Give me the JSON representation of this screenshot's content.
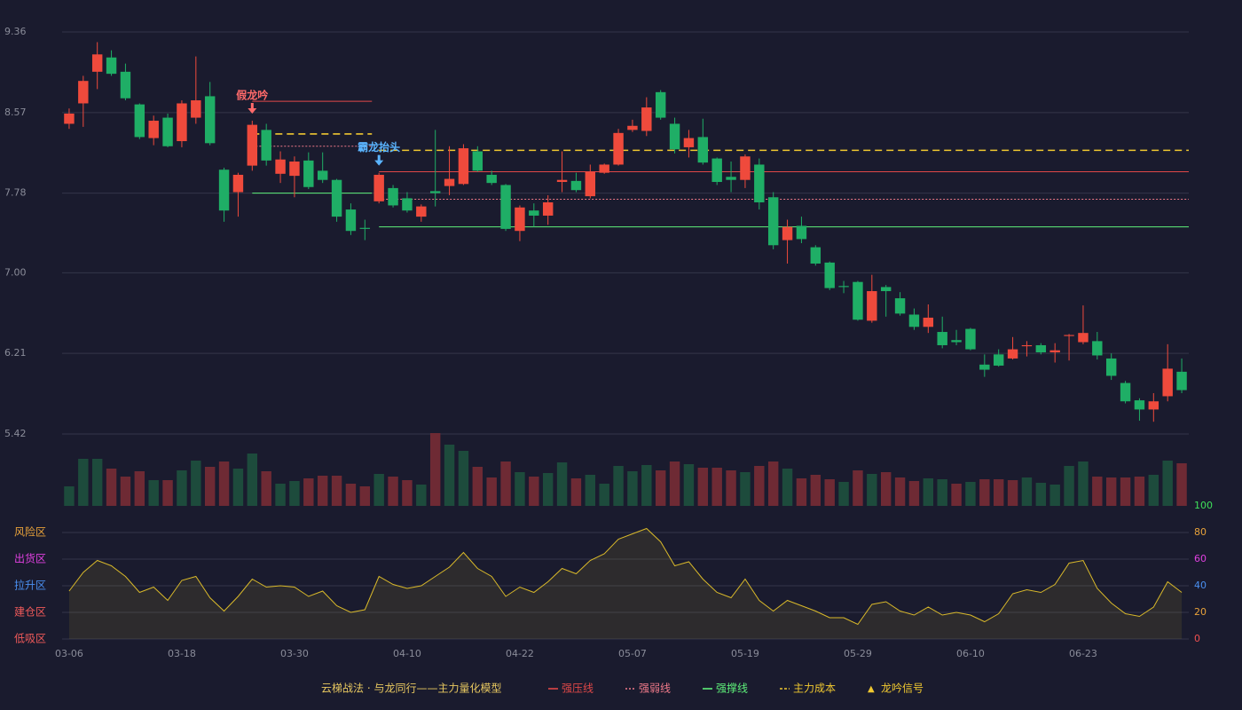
{
  "chart_data": {
    "type": "candlestick",
    "categories": [
      "03-06",
      null,
      null,
      null,
      null,
      null,
      null,
      null,
      "03-18",
      null,
      null,
      null,
      null,
      null,
      null,
      null,
      "03-30",
      null,
      null,
      null,
      null,
      null,
      null,
      null,
      "04-10",
      null,
      null,
      null,
      null,
      null,
      null,
      null,
      "04-22",
      null,
      null,
      null,
      null,
      null,
      null,
      null,
      "05-07",
      null,
      null,
      null,
      null,
      null,
      null,
      null,
      "05-19",
      null,
      null,
      null,
      null,
      null,
      null,
      null,
      "05-29",
      null,
      null,
      null,
      null,
      null,
      null,
      null,
      "06-10",
      null,
      null,
      null,
      null,
      null,
      null,
      null,
      "06-23",
      null,
      null,
      null,
      null,
      null,
      null,
      null
    ],
    "open": [
      8.46,
      8.66,
      8.97,
      9.11,
      8.97,
      8.65,
      8.32,
      8.52,
      8.29,
      8.52,
      8.73,
      8.01,
      7.79,
      8.05,
      8.4,
      7.97,
      7.95,
      8.1,
      8.0,
      7.91,
      7.62,
      7.44,
      7.7,
      7.83,
      7.73,
      7.55,
      7.8,
      7.85,
      7.87,
      8.19,
      7.96,
      7.86,
      7.41,
      7.61,
      7.56,
      7.89,
      7.9,
      7.75,
      7.98,
      8.06,
      8.4,
      8.39,
      8.77,
      8.46,
      8.23,
      8.33,
      8.12,
      7.94,
      7.91,
      8.06,
      7.74,
      7.32,
      7.46,
      7.25,
      7.1,
      6.87,
      6.91,
      6.53,
      6.86,
      6.75,
      6.59,
      6.47,
      6.42,
      6.34,
      6.45,
      6.1,
      6.2,
      6.16,
      6.28,
      6.29,
      6.22,
      6.38,
      6.32,
      6.33,
      6.16,
      5.92,
      5.75,
      5.66,
      5.79,
      6.03
    ],
    "high": [
      8.61,
      8.93,
      9.26,
      9.18,
      9.05,
      8.66,
      8.54,
      8.56,
      8.69,
      9.12,
      8.87,
      8.03,
      7.98,
      8.49,
      8.46,
      8.19,
      8.14,
      8.18,
      8.18,
      7.92,
      7.68,
      7.52,
      7.98,
      7.86,
      7.79,
      7.67,
      8.4,
      8.24,
      8.26,
      8.24,
      8.0,
      7.87,
      7.66,
      7.68,
      7.76,
      8.19,
      7.98,
      8.06,
      8.07,
      8.41,
      8.5,
      8.72,
      8.79,
      8.52,
      8.4,
      8.51,
      8.13,
      8.09,
      8.16,
      8.12,
      7.79,
      7.52,
      7.55,
      7.27,
      7.11,
      6.92,
      6.92,
      6.98,
      6.88,
      6.81,
      6.65,
      6.69,
      6.57,
      6.44,
      6.46,
      6.2,
      6.25,
      6.37,
      6.33,
      6.31,
      6.31,
      6.4,
      6.68,
      6.42,
      6.21,
      5.94,
      5.77,
      5.82,
      6.3,
      6.16
    ],
    "low": [
      8.41,
      8.43,
      8.8,
      8.93,
      8.69,
      8.31,
      8.25,
      8.23,
      8.23,
      8.46,
      8.25,
      7.5,
      7.55,
      8.0,
      8.05,
      7.88,
      7.74,
      7.82,
      7.88,
      7.5,
      7.37,
      7.32,
      7.68,
      7.64,
      7.59,
      7.5,
      7.65,
      7.76,
      7.86,
      7.99,
      7.86,
      7.41,
      7.31,
      7.45,
      7.47,
      7.79,
      7.79,
      7.73,
      7.97,
      8.05,
      8.38,
      8.34,
      8.5,
      8.17,
      8.13,
      8.06,
      7.86,
      7.79,
      7.83,
      7.62,
      7.23,
      7.09,
      7.29,
      7.07,
      6.83,
      6.8,
      6.53,
      6.51,
      6.57,
      6.58,
      6.44,
      6.41,
      6.26,
      6.29,
      6.24,
      5.98,
      6.08,
      6.15,
      6.18,
      6.2,
      6.12,
      6.14,
      6.3,
      6.15,
      5.95,
      5.72,
      5.55,
      5.54,
      5.74,
      5.82
    ],
    "close": [
      8.56,
      8.88,
      9.14,
      8.95,
      8.71,
      8.33,
      8.49,
      8.24,
      8.66,
      8.69,
      8.27,
      7.61,
      7.96,
      8.45,
      8.1,
      8.11,
      8.09,
      7.84,
      7.91,
      7.55,
      7.41,
      7.43,
      7.96,
      7.66,
      7.61,
      7.65,
      7.78,
      7.92,
      8.22,
      8.0,
      7.88,
      7.43,
      7.64,
      7.56,
      7.69,
      7.91,
      7.81,
      7.99,
      8.06,
      8.37,
      8.44,
      8.62,
      8.52,
      8.21,
      8.32,
      8.08,
      7.89,
      7.91,
      8.14,
      7.69,
      7.27,
      7.45,
      7.33,
      7.09,
      6.85,
      6.86,
      6.54,
      6.82,
      6.82,
      6.6,
      6.47,
      6.56,
      6.29,
      6.32,
      6.25,
      6.05,
      6.09,
      6.25,
      6.29,
      6.22,
      6.24,
      6.39,
      6.41,
      6.19,
      5.99,
      5.74,
      5.66,
      5.74,
      6.06,
      5.85
    ],
    "up_color": "#ef4a3c",
    "down_color": "#1fae66",
    "ylim": [
      5.42,
      9.36
    ],
    "yticks": [
      9.36,
      8.57,
      7.78,
      {
        "value": 7,
        "label": "7.00"
      },
      6.21,
      5.42
    ],
    "grid": true,
    "lines": [
      {
        "name": "强压线",
        "color": "#e04848",
        "style": "solid",
        "segments": [
          {
            "start": 13,
            "end": 21,
            "value": 8.68
          },
          {
            "start": 22,
            "end": 79,
            "value": 7.99
          }
        ]
      },
      {
        "name": "强弱线",
        "color": "#f07a8a",
        "style": "dotted",
        "segments": [
          {
            "start": 13,
            "end": 21,
            "value": 8.24
          },
          {
            "start": 22,
            "end": 79,
            "value": 7.72
          }
        ]
      },
      {
        "name": "强撑线",
        "color": "#5ef07a",
        "style": "solid",
        "segments": [
          {
            "start": 13,
            "end": 21,
            "value": 7.78
          },
          {
            "start": 22,
            "end": 79,
            "value": 7.45
          }
        ]
      },
      {
        "name": "主力成本",
        "color": "#f0c830",
        "style": "dashed",
        "segments": [
          {
            "start": 13,
            "end": 21,
            "value": 8.36
          },
          {
            "start": 22,
            "end": 79,
            "value": 8.2
          }
        ]
      }
    ],
    "signals": [
      {
        "index": 13,
        "label": "假龙吟",
        "color": "#ff6a6a"
      },
      {
        "index": 22,
        "label": "霸龙抬头",
        "color": "#5ab4ff"
      }
    ],
    "signal_legend": {
      "symbol": "▲",
      "name": "龙吟信号",
      "color": "#f0c830"
    },
    "legend_title": "云梯战法 · 与龙同行——主力量化模型",
    "volume": {
      "values": [
        22,
        53,
        53,
        42,
        33,
        39,
        29,
        29,
        40,
        51,
        44,
        50,
        42,
        59,
        39,
        25,
        28,
        31,
        34,
        34,
        25,
        22,
        36,
        33,
        29,
        24,
        82,
        69,
        62,
        44,
        32,
        50,
        38,
        33,
        37,
        49,
        31,
        35,
        25,
        45,
        39,
        46,
        40,
        50,
        47,
        43,
        43,
        40,
        38,
        45,
        50,
        42,
        31,
        35,
        30,
        27,
        40,
        36,
        38,
        32,
        28,
        31,
        30,
        25,
        27,
        30,
        30,
        29,
        32,
        26,
        24,
        45,
        50,
        33,
        32,
        32,
        33,
        35,
        51,
        48
      ],
      "up": [
        0,
        0,
        0,
        1,
        1,
        1,
        0,
        1,
        0,
        0,
        1,
        1,
        0,
        0,
        1,
        0,
        0,
        1,
        1,
        1,
        1,
        1,
        0,
        1,
        1,
        0,
        1,
        0,
        0,
        1,
        1,
        1,
        0,
        1,
        0,
        0,
        1,
        0,
        0,
        0,
        0,
        0,
        1,
        1,
        0,
        1,
        1,
        1,
        0,
        1,
        1,
        0,
        1,
        1,
        1,
        0,
        1,
        0,
        1,
        1,
        1,
        0,
        0,
        1,
        0,
        1,
        1,
        1,
        0,
        0,
        0,
        0,
        0,
        1,
        1,
        1,
        1,
        0,
        0,
        1
      ],
      "up_color": "#6e2a34",
      "down_color": "#1d4b3c"
    },
    "oscillator": {
      "values": [
        36,
        50,
        59,
        55,
        47,
        35,
        39,
        29,
        44,
        47,
        31,
        21,
        32,
        45,
        39,
        40,
        39,
        32,
        36,
        25,
        20,
        22,
        47,
        41,
        38,
        40,
        47,
        54,
        65,
        53,
        47,
        32,
        39,
        35,
        43,
        53,
        49,
        59,
        64,
        75,
        79,
        83,
        73,
        55,
        58,
        45,
        35,
        31,
        45,
        29,
        21,
        29,
        25,
        21,
        16,
        16,
        11,
        26,
        28,
        21,
        18,
        24,
        18,
        20,
        18,
        13,
        19,
        34,
        37,
        35,
        41,
        57,
        59,
        38,
        27,
        19,
        17,
        24,
        43,
        35
      ],
      "color": "#d9b92a",
      "ylim": [
        0,
        100
      ],
      "yticks": [
        0,
        20,
        40,
        60,
        80,
        100
      ],
      "ytick_colors": [
        "#f05050",
        "#e8a23a",
        "#4a8ff0",
        "#e040e0",
        "#e8a23a",
        "#3ee05a"
      ],
      "zones": [
        {
          "label": "风险区",
          "value": 80,
          "color": "#e8a23a"
        },
        {
          "label": "出货区",
          "value": 60,
          "color": "#e040e0"
        },
        {
          "label": "拉升区",
          "value": 40,
          "color": "#4a8ff0"
        },
        {
          "label": "建仓区",
          "value": 20,
          "color": "#f05a5a"
        },
        {
          "label": "低吸区",
          "value": 0,
          "color": "#f05a5a"
        }
      ]
    }
  }
}
